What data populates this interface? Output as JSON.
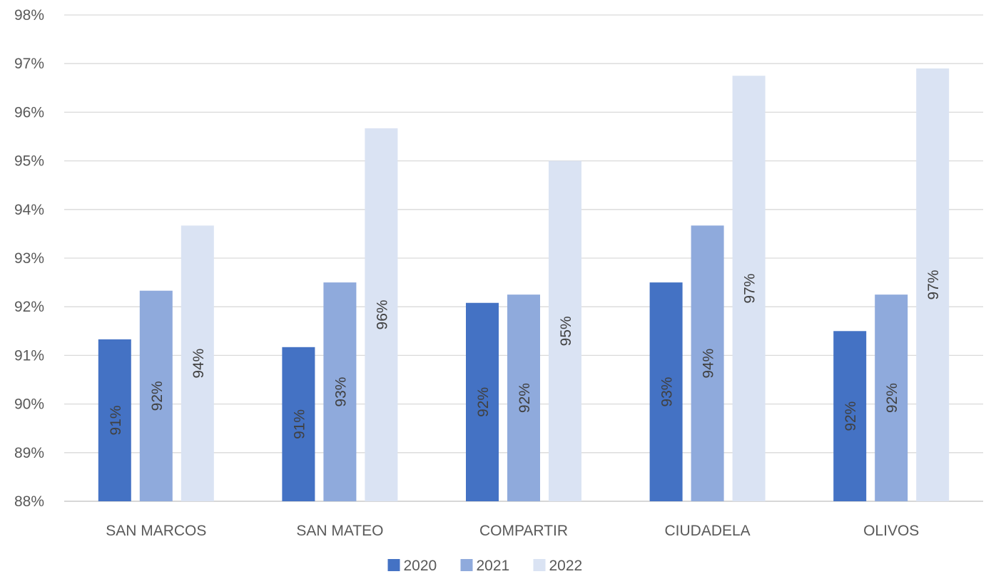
{
  "chart_data": {
    "type": "bar",
    "title": "",
    "xlabel": "",
    "ylabel": "",
    "categories": [
      "SAN MARCOS",
      "SAN MATEO",
      "COMPARTIR",
      "CIUDADELA",
      "OLIVOS"
    ],
    "series": [
      {
        "name": "2020",
        "color": "#4472C4",
        "values": [
          91.33,
          91.17,
          92.08,
          92.5,
          91.5
        ],
        "labels": [
          "91%",
          "91%",
          "92%",
          "93%",
          "92%"
        ]
      },
      {
        "name": "2021",
        "color": "#8FAADC",
        "values": [
          92.33,
          92.5,
          92.25,
          93.67,
          92.25
        ],
        "labels": [
          "92%",
          "93%",
          "92%",
          "94%",
          "92%"
        ]
      },
      {
        "name": "2022",
        "color": "#DAE3F3",
        "values": [
          93.67,
          95.67,
          95.0,
          96.75,
          96.9
        ],
        "labels": [
          "94%",
          "96%",
          "95%",
          "97%",
          "97%"
        ]
      }
    ],
    "ylim": [
      88,
      98
    ],
    "yticks": [
      "88%",
      "89%",
      "90%",
      "91%",
      "92%",
      "93%",
      "94%",
      "95%",
      "96%",
      "97%",
      "98%"
    ],
    "grid": true,
    "legend_position": "bottom",
    "data_label_orientation": "vertical"
  }
}
